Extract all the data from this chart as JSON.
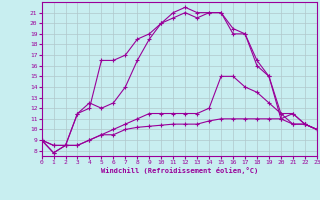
{
  "xlabel": "Windchill (Refroidissement éolien,°C)",
  "xlim": [
    0,
    23
  ],
  "ylim": [
    7.5,
    22
  ],
  "yticks": [
    8,
    9,
    10,
    11,
    12,
    13,
    14,
    15,
    16,
    17,
    18,
    19,
    20,
    21
  ],
  "xticks": [
    0,
    1,
    2,
    3,
    4,
    5,
    6,
    7,
    8,
    9,
    10,
    11,
    12,
    13,
    14,
    15,
    16,
    17,
    18,
    19,
    20,
    21,
    22,
    23
  ],
  "bg_color": "#c8eef0",
  "grid_color": "#b0c8cc",
  "line_color": "#990099",
  "line1_x": [
    0,
    1,
    2,
    3,
    4,
    5,
    6,
    7,
    8,
    9,
    10,
    11,
    12,
    13,
    14,
    15,
    16,
    17,
    18,
    19,
    20,
    21,
    22,
    23
  ],
  "line1_y": [
    9.0,
    7.8,
    8.5,
    11.5,
    12.0,
    16.5,
    16.5,
    17.0,
    18.5,
    19.0,
    20.0,
    21.0,
    21.5,
    21.0,
    21.0,
    21.0,
    19.5,
    19.0,
    16.5,
    15.0,
    11.5,
    10.5,
    10.5,
    10.0
  ],
  "line2_x": [
    0,
    1,
    2,
    3,
    4,
    5,
    6,
    7,
    8,
    9,
    10,
    11,
    12,
    13,
    14,
    15,
    16,
    17,
    18,
    19,
    20,
    21,
    22,
    23
  ],
  "line2_y": [
    9.0,
    7.8,
    8.5,
    11.5,
    12.5,
    12.0,
    12.5,
    14.0,
    16.5,
    18.5,
    20.0,
    20.5,
    21.0,
    20.5,
    21.0,
    21.0,
    19.0,
    19.0,
    16.0,
    15.0,
    11.0,
    11.5,
    10.5,
    10.0
  ],
  "line3_x": [
    0,
    1,
    2,
    3,
    4,
    5,
    6,
    7,
    8,
    9,
    10,
    11,
    12,
    13,
    14,
    15,
    16,
    17,
    18,
    19,
    20,
    21,
    22,
    23
  ],
  "line3_y": [
    9.0,
    8.5,
    8.5,
    8.5,
    9.0,
    9.5,
    10.0,
    10.5,
    11.0,
    11.5,
    11.5,
    11.5,
    11.5,
    11.5,
    12.0,
    15.0,
    15.0,
    14.0,
    13.5,
    12.5,
    11.5,
    11.5,
    10.5,
    10.0
  ],
  "line4_x": [
    0,
    1,
    2,
    3,
    4,
    5,
    6,
    7,
    8,
    9,
    10,
    11,
    12,
    13,
    14,
    15,
    16,
    17,
    18,
    19,
    20,
    21,
    22,
    23
  ],
  "line4_y": [
    9.0,
    8.5,
    8.5,
    8.5,
    9.0,
    9.5,
    9.5,
    10.0,
    10.2,
    10.3,
    10.4,
    10.5,
    10.5,
    10.5,
    10.8,
    11.0,
    11.0,
    11.0,
    11.0,
    11.0,
    11.0,
    10.5,
    10.5,
    10.0
  ]
}
